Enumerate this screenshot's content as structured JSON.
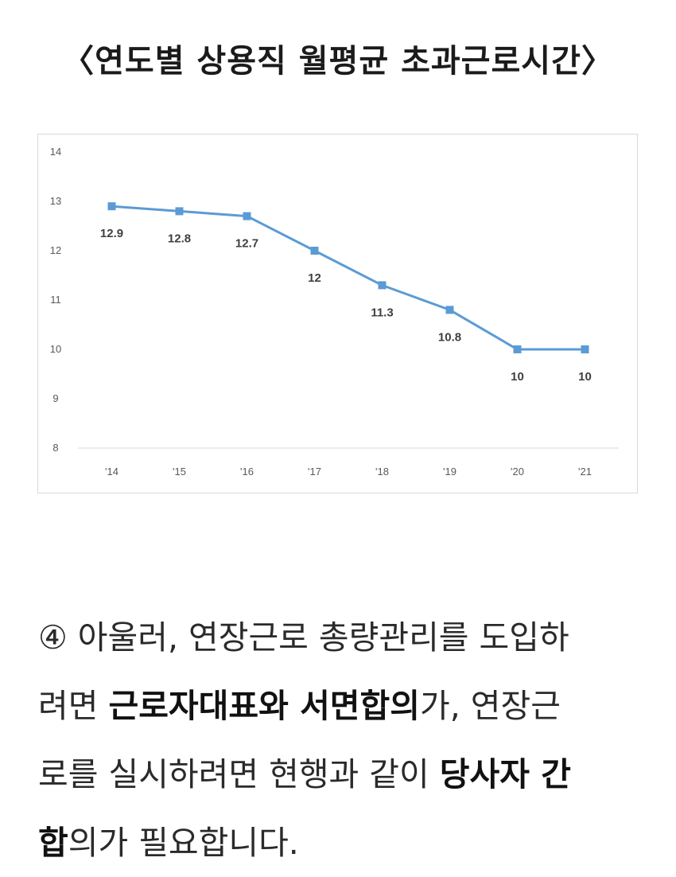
{
  "title": "〈연도별 상용직 월평균 초과근로시간〉",
  "chart_data": {
    "type": "line",
    "title": "",
    "xlabel": "",
    "ylabel": "",
    "categories": [
      "'14",
      "'15",
      "'16",
      "'17",
      "'18",
      "'19",
      "'20",
      "'21"
    ],
    "series": [
      {
        "values": [
          12.9,
          12.8,
          12.7,
          12,
          11.3,
          10.8,
          10,
          10
        ],
        "labels": [
          "12.9",
          "12.8",
          "12.7",
          "12",
          "11.3",
          "10.8",
          "10",
          "10"
        ]
      }
    ],
    "ylim": [
      8,
      14
    ],
    "yticks": [
      "8",
      "9",
      "10",
      "11",
      "12",
      "13",
      "14"
    ],
    "grid": false,
    "line_color": "#5b9bd5"
  },
  "body": {
    "line1": "④ 아울러, 연장근로 총량관리를 도입하",
    "line2_pre": "려면 ",
    "line2_bold": "근로자대표와 서면합의",
    "line2_post": "가, 연장근",
    "line3_pre": "로를 실시하려면 현행과 같이 ",
    "line3_bold": "당사자 간",
    "line4_bold": "합",
    "line4_post": "의가 필요합니다."
  }
}
